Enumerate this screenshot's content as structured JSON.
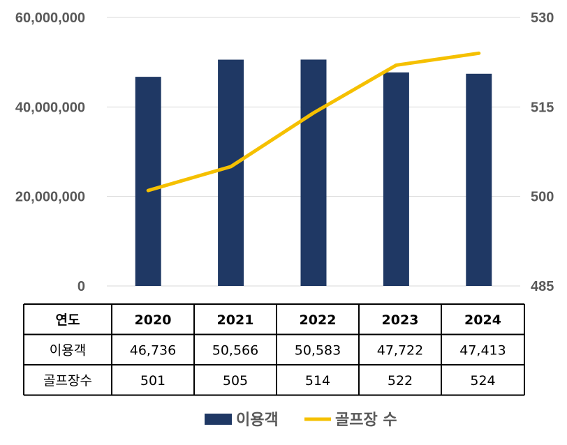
{
  "chart_data": {
    "type": "bar+line",
    "categories": [
      "2020",
      "2021",
      "2022",
      "2023",
      "2024"
    ],
    "series": [
      {
        "name": "이용객",
        "type": "bar",
        "axis": "left",
        "values": [
          46736000,
          50566000,
          50583000,
          47722000,
          47413000
        ],
        "color": "#1f3864"
      },
      {
        "name": "골프장 수",
        "type": "line",
        "axis": "right",
        "values": [
          501,
          505,
          514,
          522,
          524
        ],
        "color": "#f5c000"
      }
    ],
    "y_left": {
      "ticks": [
        "0",
        "20,000,000",
        "40,000,000",
        "60,000,000"
      ],
      "ylim": [
        0,
        60000000
      ]
    },
    "y_right": {
      "ticks": [
        "485",
        "500",
        "515",
        "530"
      ],
      "ylim": [
        485,
        530
      ]
    },
    "grid": true,
    "legend_position": "bottom"
  },
  "table": {
    "header_label": "연도",
    "years": [
      "2020",
      "2021",
      "2022",
      "2023",
      "2024"
    ],
    "rows": [
      {
        "label": "이용객",
        "values": [
          "46,736",
          "50,566",
          "50,583",
          "47,722",
          "47,413"
        ]
      },
      {
        "label": "골프장수",
        "values": [
          "501",
          "505",
          "514",
          "522",
          "524"
        ]
      }
    ]
  },
  "legend": {
    "items": [
      {
        "label": "이용객",
        "marker": "box",
        "color": "#1f3864"
      },
      {
        "label": "골프장 수",
        "marker": "line",
        "color": "#f5c000"
      }
    ]
  }
}
